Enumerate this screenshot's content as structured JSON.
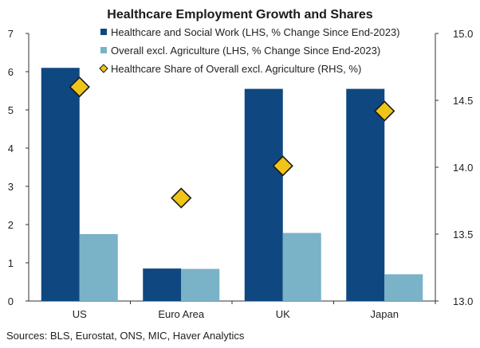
{
  "chart_data": {
    "type": "bar",
    "title": "Healthcare Employment Growth and Shares",
    "categories": [
      "US",
      "Euro Area",
      "UK",
      "Japan"
    ],
    "series": [
      {
        "name": "Healthcare and Social Work (LHS, % Change Since End-2023)",
        "axis": "left",
        "kind": "bar",
        "color": "#0f4880",
        "values": [
          6.1,
          0.85,
          5.55,
          5.55
        ]
      },
      {
        "name": "Overall excl. Agriculture (LHS, % Change Since End-2023)",
        "axis": "left",
        "kind": "bar",
        "color": "#7ab2c8",
        "values": [
          1.75,
          0.84,
          1.78,
          0.7
        ]
      },
      {
        "name": "Healthcare Share of Overall excl. Agriculture (RHS, %)",
        "axis": "right",
        "kind": "marker",
        "marker": "diamond",
        "color": "#f0c419",
        "values": [
          14.6,
          13.77,
          14.01,
          14.42
        ]
      }
    ],
    "y_left": {
      "ylim": [
        0,
        7
      ],
      "ticks": [
        "0",
        "1",
        "2",
        "3",
        "4",
        "5",
        "6",
        "7"
      ]
    },
    "y_right": {
      "ylim": [
        13.0,
        15.0
      ],
      "ticks": [
        "13.0",
        "13.5",
        "14.0",
        "14.5",
        "15.0"
      ]
    },
    "grid": false,
    "legend_position": "top-center"
  },
  "source_note": "Sources: BLS, Eurostat, ONS, MIC, Haver Analytics"
}
